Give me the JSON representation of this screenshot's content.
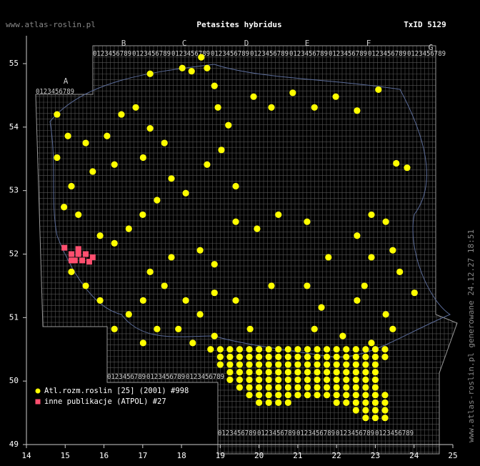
{
  "header": {
    "site": "www.atlas-roslin.pl",
    "title": "Petasites hybridus",
    "txid": "TxID 5129"
  },
  "axes": {
    "xlim": [
      14,
      25
    ],
    "xticks": [
      14,
      15,
      16,
      17,
      18,
      19,
      20,
      21,
      22,
      23,
      24,
      25
    ],
    "ylim": [
      49,
      55
    ],
    "yticks": [
      49,
      50,
      51,
      52,
      53,
      54,
      55
    ]
  },
  "grid_labels": {
    "letters": [
      "A",
      "B",
      "C",
      "D",
      "E",
      "F",
      "G"
    ],
    "digits": "0123456789"
  },
  "side_text": "www.atlas-roslin.pl generowane 24.12.27 18:51",
  "points": {
    "series": [
      {
        "name": "Atl.rozm.roslin [25] (2001) #998",
        "color": "#ffff00",
        "points": [
          [
            17.19,
            54.84
          ],
          [
            18.02,
            54.93
          ],
          [
            18.51,
            55.1
          ],
          [
            18.66,
            54.93
          ],
          [
            18.26,
            54.88
          ],
          [
            18.85,
            54.65
          ],
          [
            18.94,
            54.31
          ],
          [
            19.21,
            54.03
          ],
          [
            19.86,
            54.48
          ],
          [
            20.32,
            54.31
          ],
          [
            20.87,
            54.54
          ],
          [
            21.43,
            54.31
          ],
          [
            21.98,
            54.48
          ],
          [
            22.53,
            54.26
          ],
          [
            23.08,
            54.59
          ],
          [
            14.79,
            54.2
          ],
          [
            15.07,
            53.86
          ],
          [
            14.79,
            53.52
          ],
          [
            15.53,
            53.75
          ],
          [
            16.08,
            53.86
          ],
          [
            16.45,
            54.2
          ],
          [
            16.82,
            54.31
          ],
          [
            17.19,
            53.98
          ],
          [
            17.56,
            53.75
          ],
          [
            17.01,
            53.52
          ],
          [
            16.27,
            53.41
          ],
          [
            15.71,
            53.3
          ],
          [
            15.16,
            53.07
          ],
          [
            14.97,
            52.74
          ],
          [
            15.34,
            52.62
          ],
          [
            17.74,
            53.19
          ],
          [
            18.11,
            52.96
          ],
          [
            17.37,
            52.85
          ],
          [
            17.0,
            52.62
          ],
          [
            16.64,
            52.4
          ],
          [
            16.27,
            52.17
          ],
          [
            15.9,
            52.29
          ],
          [
            18.66,
            53.41
          ],
          [
            19.03,
            53.64
          ],
          [
            19.4,
            53.07
          ],
          [
            19.4,
            52.51
          ],
          [
            19.95,
            52.4
          ],
          [
            20.5,
            52.62
          ],
          [
            21.24,
            52.51
          ],
          [
            21.79,
            51.95
          ],
          [
            22.53,
            52.29
          ],
          [
            22.9,
            52.62
          ],
          [
            23.27,
            52.51
          ],
          [
            22.9,
            51.95
          ],
          [
            23.45,
            52.06
          ],
          [
            23.63,
            51.72
          ],
          [
            17.74,
            51.95
          ],
          [
            18.48,
            52.06
          ],
          [
            18.85,
            51.84
          ],
          [
            17.19,
            51.72
          ],
          [
            17.56,
            51.5
          ],
          [
            17.01,
            51.27
          ],
          [
            16.64,
            51.05
          ],
          [
            16.27,
            50.82
          ],
          [
            15.9,
            51.27
          ],
          [
            15.53,
            51.5
          ],
          [
            15.16,
            51.72
          ],
          [
            18.11,
            51.27
          ],
          [
            18.48,
            51.05
          ],
          [
            18.85,
            51.39
          ],
          [
            19.4,
            51.27
          ],
          [
            17.92,
            50.82
          ],
          [
            18.29,
            50.6
          ],
          [
            17.37,
            50.82
          ],
          [
            17.01,
            50.6
          ],
          [
            20.32,
            51.5
          ],
          [
            21.24,
            51.5
          ],
          [
            22.53,
            51.27
          ],
          [
            22.72,
            51.5
          ],
          [
            23.27,
            51.05
          ],
          [
            23.45,
            50.82
          ],
          [
            24.01,
            51.39
          ],
          [
            21.61,
            51.16
          ],
          [
            19.77,
            50.82
          ],
          [
            18.85,
            50.71
          ],
          [
            21.43,
            50.82
          ],
          [
            22.16,
            50.71
          ],
          [
            22.9,
            50.6
          ],
          [
            23.82,
            53.36
          ],
          [
            23.54,
            53.43
          ],
          [
            18.75,
            50.5
          ],
          [
            19,
            50.5
          ],
          [
            19.25,
            50.5
          ],
          [
            19.5,
            50.5
          ],
          [
            19.75,
            50.5
          ],
          [
            20,
            50.5
          ],
          [
            20.25,
            50.5
          ],
          [
            20.5,
            50.5
          ],
          [
            20.75,
            50.5
          ],
          [
            21,
            50.5
          ],
          [
            21.25,
            50.5
          ],
          [
            21.5,
            50.5
          ],
          [
            21.75,
            50.5
          ],
          [
            22,
            50.5
          ],
          [
            22.25,
            50.5
          ],
          [
            22.5,
            50.5
          ],
          [
            22.75,
            50.5
          ],
          [
            23,
            50.5
          ],
          [
            23.25,
            50.5
          ],
          [
            19,
            50.38
          ],
          [
            19.25,
            50.38
          ],
          [
            19.5,
            50.38
          ],
          [
            19.75,
            50.38
          ],
          [
            20,
            50.38
          ],
          [
            20.25,
            50.38
          ],
          [
            20.5,
            50.38
          ],
          [
            20.75,
            50.38
          ],
          [
            21,
            50.38
          ],
          [
            21.25,
            50.38
          ],
          [
            21.5,
            50.38
          ],
          [
            21.75,
            50.38
          ],
          [
            22,
            50.38
          ],
          [
            22.25,
            50.38
          ],
          [
            22.5,
            50.38
          ],
          [
            22.75,
            50.38
          ],
          [
            23,
            50.38
          ],
          [
            23.25,
            50.38
          ],
          [
            19,
            50.26
          ],
          [
            19.25,
            50.26
          ],
          [
            19.5,
            50.26
          ],
          [
            19.75,
            50.26
          ],
          [
            20,
            50.26
          ],
          [
            20.25,
            50.26
          ],
          [
            20.5,
            50.26
          ],
          [
            20.75,
            50.26
          ],
          [
            21,
            50.26
          ],
          [
            21.25,
            50.26
          ],
          [
            21.5,
            50.26
          ],
          [
            21.75,
            50.26
          ],
          [
            22,
            50.26
          ],
          [
            22.25,
            50.26
          ],
          [
            22.5,
            50.26
          ],
          [
            22.75,
            50.26
          ],
          [
            23,
            50.26
          ],
          [
            19.25,
            50.14
          ],
          [
            19.5,
            50.14
          ],
          [
            19.75,
            50.14
          ],
          [
            20,
            50.14
          ],
          [
            20.25,
            50.14
          ],
          [
            20.5,
            50.14
          ],
          [
            20.75,
            50.14
          ],
          [
            21,
            50.14
          ],
          [
            21.25,
            50.14
          ],
          [
            21.5,
            50.14
          ],
          [
            21.75,
            50.14
          ],
          [
            22,
            50.14
          ],
          [
            22.25,
            50.14
          ],
          [
            22.5,
            50.14
          ],
          [
            22.75,
            50.14
          ],
          [
            23,
            50.14
          ],
          [
            19.25,
            50.02
          ],
          [
            19.5,
            50.02
          ],
          [
            19.75,
            50.02
          ],
          [
            20,
            50.02
          ],
          [
            20.25,
            50.02
          ],
          [
            20.5,
            50.02
          ],
          [
            20.75,
            50.02
          ],
          [
            21,
            50.02
          ],
          [
            21.25,
            50.02
          ],
          [
            21.5,
            50.02
          ],
          [
            21.75,
            50.02
          ],
          [
            22,
            50.02
          ],
          [
            22.25,
            50.02
          ],
          [
            22.5,
            50.02
          ],
          [
            22.75,
            50.02
          ],
          [
            23,
            50.02
          ],
          [
            19.5,
            49.9
          ],
          [
            19.75,
            49.9
          ],
          [
            20,
            49.9
          ],
          [
            20.25,
            49.9
          ],
          [
            20.5,
            49.9
          ],
          [
            20.75,
            49.9
          ],
          [
            21,
            49.9
          ],
          [
            21.25,
            49.9
          ],
          [
            21.5,
            49.9
          ],
          [
            21.75,
            49.9
          ],
          [
            22,
            49.9
          ],
          [
            22.25,
            49.9
          ],
          [
            22.5,
            49.9
          ],
          [
            22.75,
            49.9
          ],
          [
            23,
            49.9
          ],
          [
            19.75,
            49.78
          ],
          [
            20,
            49.78
          ],
          [
            20.25,
            49.78
          ],
          [
            20.5,
            49.78
          ],
          [
            20.75,
            49.78
          ],
          [
            21,
            49.78
          ],
          [
            21.25,
            49.78
          ],
          [
            21.5,
            49.78
          ],
          [
            21.75,
            49.78
          ],
          [
            22,
            49.78
          ],
          [
            22.25,
            49.78
          ],
          [
            22.5,
            49.78
          ],
          [
            22.75,
            49.78
          ],
          [
            23,
            49.78
          ],
          [
            23.25,
            49.78
          ],
          [
            20,
            49.66
          ],
          [
            20.25,
            49.66
          ],
          [
            20.5,
            49.66
          ],
          [
            20.75,
            49.66
          ],
          [
            22,
            49.66
          ],
          [
            22.25,
            49.66
          ],
          [
            22.5,
            49.66
          ],
          [
            22.75,
            49.66
          ],
          [
            23,
            49.66
          ],
          [
            23.25,
            49.66
          ],
          [
            22.5,
            49.54
          ],
          [
            22.75,
            49.54
          ],
          [
            23,
            49.54
          ],
          [
            23.25,
            49.54
          ],
          [
            22.75,
            49.42
          ],
          [
            23,
            49.42
          ],
          [
            23.25,
            49.42
          ]
        ]
      },
      {
        "name": "inne publikacje (ATPOL) #27",
        "color": "#ff4f6f",
        "points": [
          [
            14.98,
            52.1
          ],
          [
            15.16,
            52.0
          ],
          [
            15.34,
            52.0
          ],
          [
            15.53,
            52.0
          ],
          [
            15.71,
            51.95
          ],
          [
            15.25,
            51.9
          ],
          [
            15.44,
            51.9
          ],
          [
            15.62,
            51.88
          ],
          [
            15.16,
            51.9
          ],
          [
            15.34,
            52.08
          ]
        ]
      }
    ]
  }
}
